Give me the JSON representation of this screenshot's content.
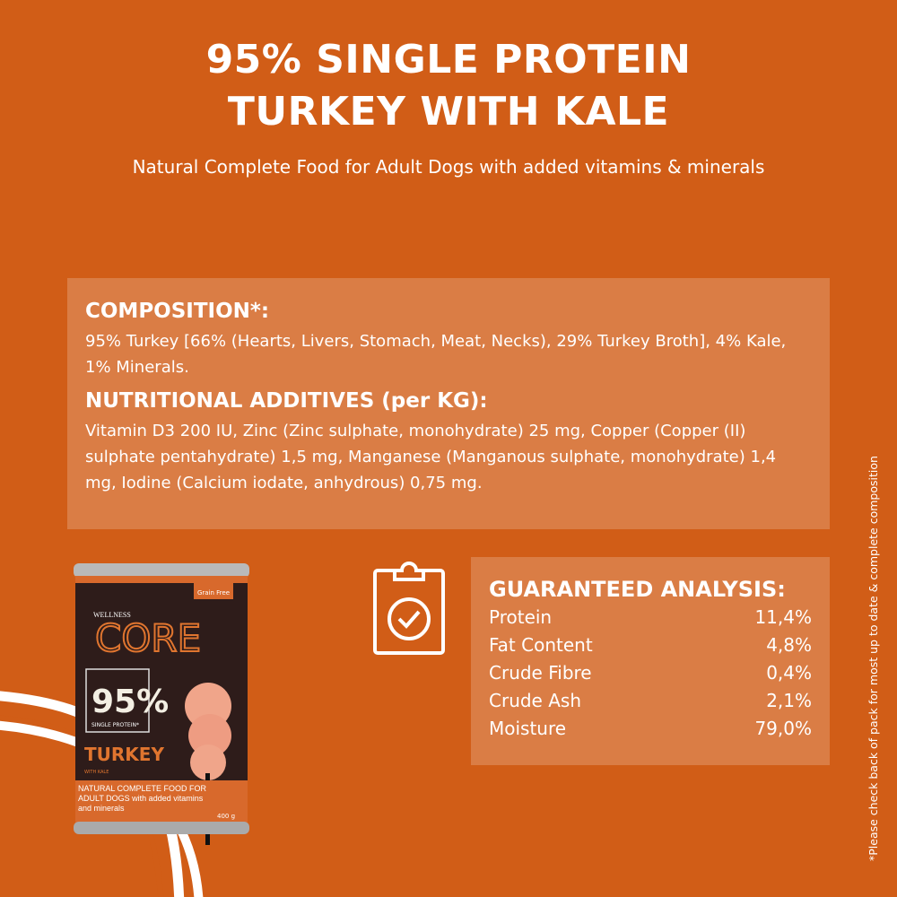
{
  "header": {
    "title_line1": "95% SINGLE PROTEIN",
    "title_line2": "TURKEY WITH KALE",
    "subtitle": "Natural Complete Food for Adult Dogs with added vitamins & minerals"
  },
  "composition": {
    "heading": "COMPOSITION*:",
    "text": "95% Turkey [66% (Hearts, Livers, Stomach, Meat, Necks), 29% Turkey Broth], 4% Kale, 1% Minerals."
  },
  "additives": {
    "heading": "NUTRITIONAL ADDITIVES (per KG):",
    "text": "Vitamin D3 200 IU, Zinc (Zinc sulphate, monohydrate) 25 mg, Copper (Copper (II) sulphate pentahydrate) 1,5 mg, Manganese (Manganous sulphate, monohydrate) 1,4 mg, Iodine (Calcium iodate, anhydrous) 0,75 mg."
  },
  "analysis": {
    "heading": "GUARANTEED ANALYSIS:",
    "rows": [
      {
        "label": "Protein",
        "value": "11,4%"
      },
      {
        "label": "Fat Content",
        "value": "4,8%"
      },
      {
        "label": "Crude Fibre",
        "value": "0,4%"
      },
      {
        "label": "Crude Ash",
        "value": "2,1%"
      },
      {
        "label": "Moisture",
        "value": "79,0%"
      }
    ]
  },
  "footnote": "*Please check back of pack for most up to date & complete composition",
  "can": {
    "badge": "Grain Free",
    "brand_small": "WELLNESS",
    "brand": "CORE",
    "percent": "95%",
    "protein": "SINGLE PROTEIN*",
    "flavor": "TURKEY",
    "with": "WITH KALE",
    "bottom": "NATURAL COMPLETE FOOD FOR ADULT DOGS with added vitamins and minerals",
    "weight": "400 g"
  },
  "colors": {
    "background": "#D15D17",
    "panel": "#DA7D45"
  },
  "icons": {
    "clipboard": "clipboard-check-icon"
  }
}
